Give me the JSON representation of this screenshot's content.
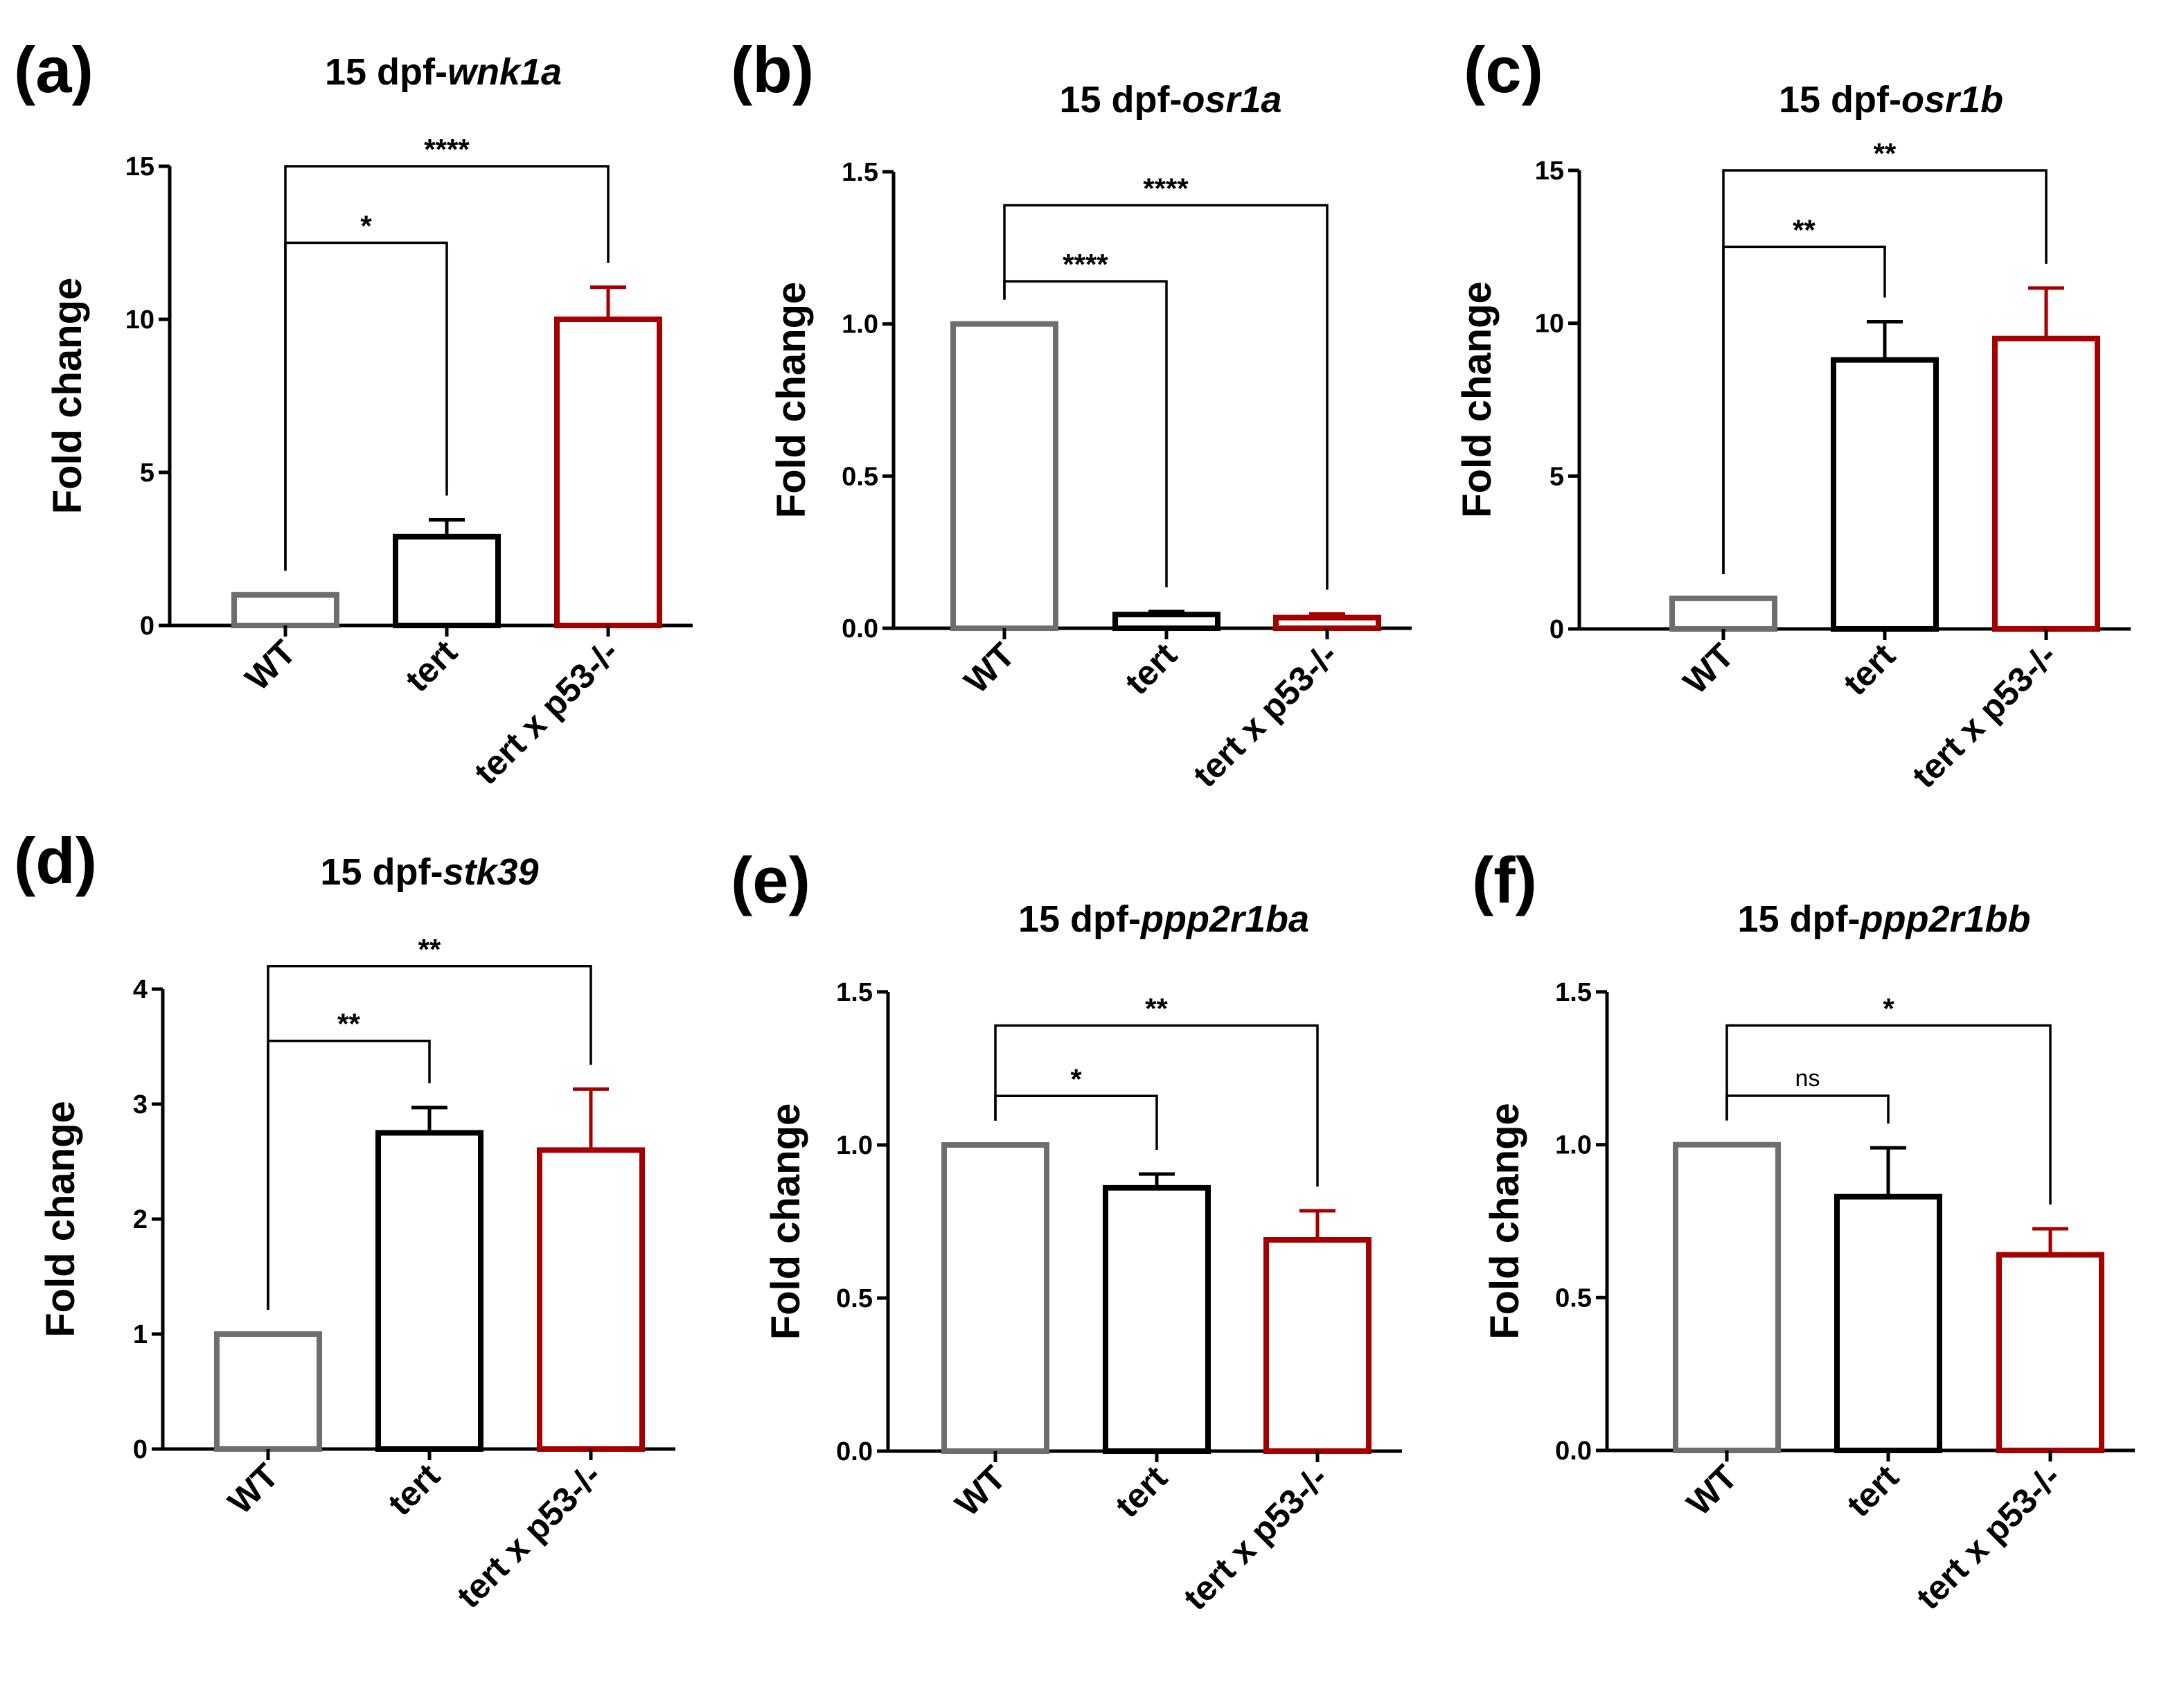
{
  "colors": {
    "wt": "#6e6e6e",
    "tert": "#000000",
    "tert_p53": "#a40000",
    "axis": "#000000"
  },
  "chart_data": [
    {
      "panel": "(a)",
      "type": "bar",
      "title_prefix": "15 dpf-",
      "title_gene": "wnk1a",
      "ylabel": "Fold change",
      "ylim": [
        0,
        15
      ],
      "yticks": [
        "0",
        "5",
        "10",
        "15"
      ],
      "ytick_values": [
        0,
        5,
        10,
        15
      ],
      "categories": [
        "WT",
        "tert",
        "tert x p53-/-"
      ],
      "values": [
        1.0,
        2.9,
        10.0
      ],
      "errors": [
        0,
        0.55,
        1.05
      ],
      "comparisons": [
        {
          "from": 0,
          "to": 1,
          "label": "*",
          "bracket_y": 12.5
        },
        {
          "from": 0,
          "to": 2,
          "label": "****",
          "bracket_y": 15.0
        }
      ]
    },
    {
      "panel": "(b)",
      "type": "bar",
      "title_prefix": "15 dpf-",
      "title_gene": "osr1a",
      "ylabel": "Fold change",
      "ylim": [
        0,
        1.5
      ],
      "yticks": [
        "0.0",
        "0.5",
        "1.0",
        "1.5"
      ],
      "ytick_values": [
        0,
        0.5,
        1.0,
        1.5
      ],
      "categories": [
        "WT",
        "tert",
        "tert x p53-/-"
      ],
      "values": [
        1.0,
        0.045,
        0.035
      ],
      "errors": [
        0,
        0.01,
        0.012
      ],
      "comparisons": [
        {
          "from": 0,
          "to": 1,
          "label": "****",
          "bracket_y": 1.14
        },
        {
          "from": 0,
          "to": 2,
          "label": "****",
          "bracket_y": 1.39
        }
      ]
    },
    {
      "panel": "(c)",
      "type": "bar",
      "title_prefix": "15 dpf-",
      "title_gene": "osr1b",
      "ylabel": "Fold change",
      "ylim": [
        0,
        15
      ],
      "yticks": [
        "0",
        "5",
        "10",
        "15"
      ],
      "ytick_values": [
        0,
        5,
        10,
        15
      ],
      "categories": [
        "WT",
        "tert",
        "tert x p53-/-"
      ],
      "values": [
        1.0,
        8.8,
        9.5
      ],
      "errors": [
        0,
        1.25,
        1.65
      ],
      "comparisons": [
        {
          "from": 0,
          "to": 1,
          "label": "**",
          "bracket_y": 12.5
        },
        {
          "from": 0,
          "to": 2,
          "label": "**",
          "bracket_y": 15.0
        }
      ]
    },
    {
      "panel": "(d)",
      "type": "bar",
      "title_prefix": "15 dpf-",
      "title_gene": "stk39",
      "ylabel": "Fold change",
      "ylim": [
        0,
        4
      ],
      "yticks": [
        "0",
        "1",
        "2",
        "3",
        "4"
      ],
      "ytick_values": [
        0,
        1,
        2,
        3,
        4
      ],
      "categories": [
        "WT",
        "tert",
        "tert x p53-/-"
      ],
      "values": [
        1.0,
        2.75,
        2.6
      ],
      "errors": [
        0,
        0.22,
        0.53
      ],
      "comparisons": [
        {
          "from": 0,
          "to": 1,
          "label": "**",
          "bracket_y": 3.55
        },
        {
          "from": 0,
          "to": 2,
          "label": "**",
          "bracket_y": 4.2
        }
      ]
    },
    {
      "panel": "(e)",
      "type": "bar",
      "title_prefix": "15 dpf-",
      "title_gene": "ppp2r1ba",
      "ylabel": "Fold change",
      "ylim": [
        0,
        1.5
      ],
      "yticks": [
        "0.0",
        "0.5",
        "1.0",
        "1.5"
      ],
      "ytick_values": [
        0,
        0.5,
        1.0,
        1.5
      ],
      "categories": [
        "WT",
        "tert",
        "tert x p53-/-"
      ],
      "values": [
        1.0,
        0.86,
        0.69
      ],
      "errors": [
        0,
        0.045,
        0.095
      ],
      "comparisons": [
        {
          "from": 0,
          "to": 1,
          "label": "*",
          "bracket_y": 1.16
        },
        {
          "from": 0,
          "to": 2,
          "label": "**",
          "bracket_y": 1.39
        }
      ]
    },
    {
      "panel": "(f)",
      "type": "bar",
      "title_prefix": "15 dpf-",
      "title_gene": "ppp2r1bb",
      "ylabel": "Fold change",
      "ylim": [
        0,
        1.5
      ],
      "yticks": [
        "0.0",
        "0.5",
        "1.0",
        "1.5"
      ],
      "ytick_values": [
        0,
        0.5,
        1.0,
        1.5
      ],
      "categories": [
        "WT",
        "tert",
        "tert x p53-/-"
      ],
      "values": [
        1.0,
        0.83,
        0.64
      ],
      "errors": [
        0,
        0.16,
        0.085
      ],
      "comparisons": [
        {
          "from": 0,
          "to": 1,
          "label": "ns",
          "bracket_y": 1.16
        },
        {
          "from": 0,
          "to": 2,
          "label": "*",
          "bracket_y": 1.39
        }
      ]
    }
  ]
}
